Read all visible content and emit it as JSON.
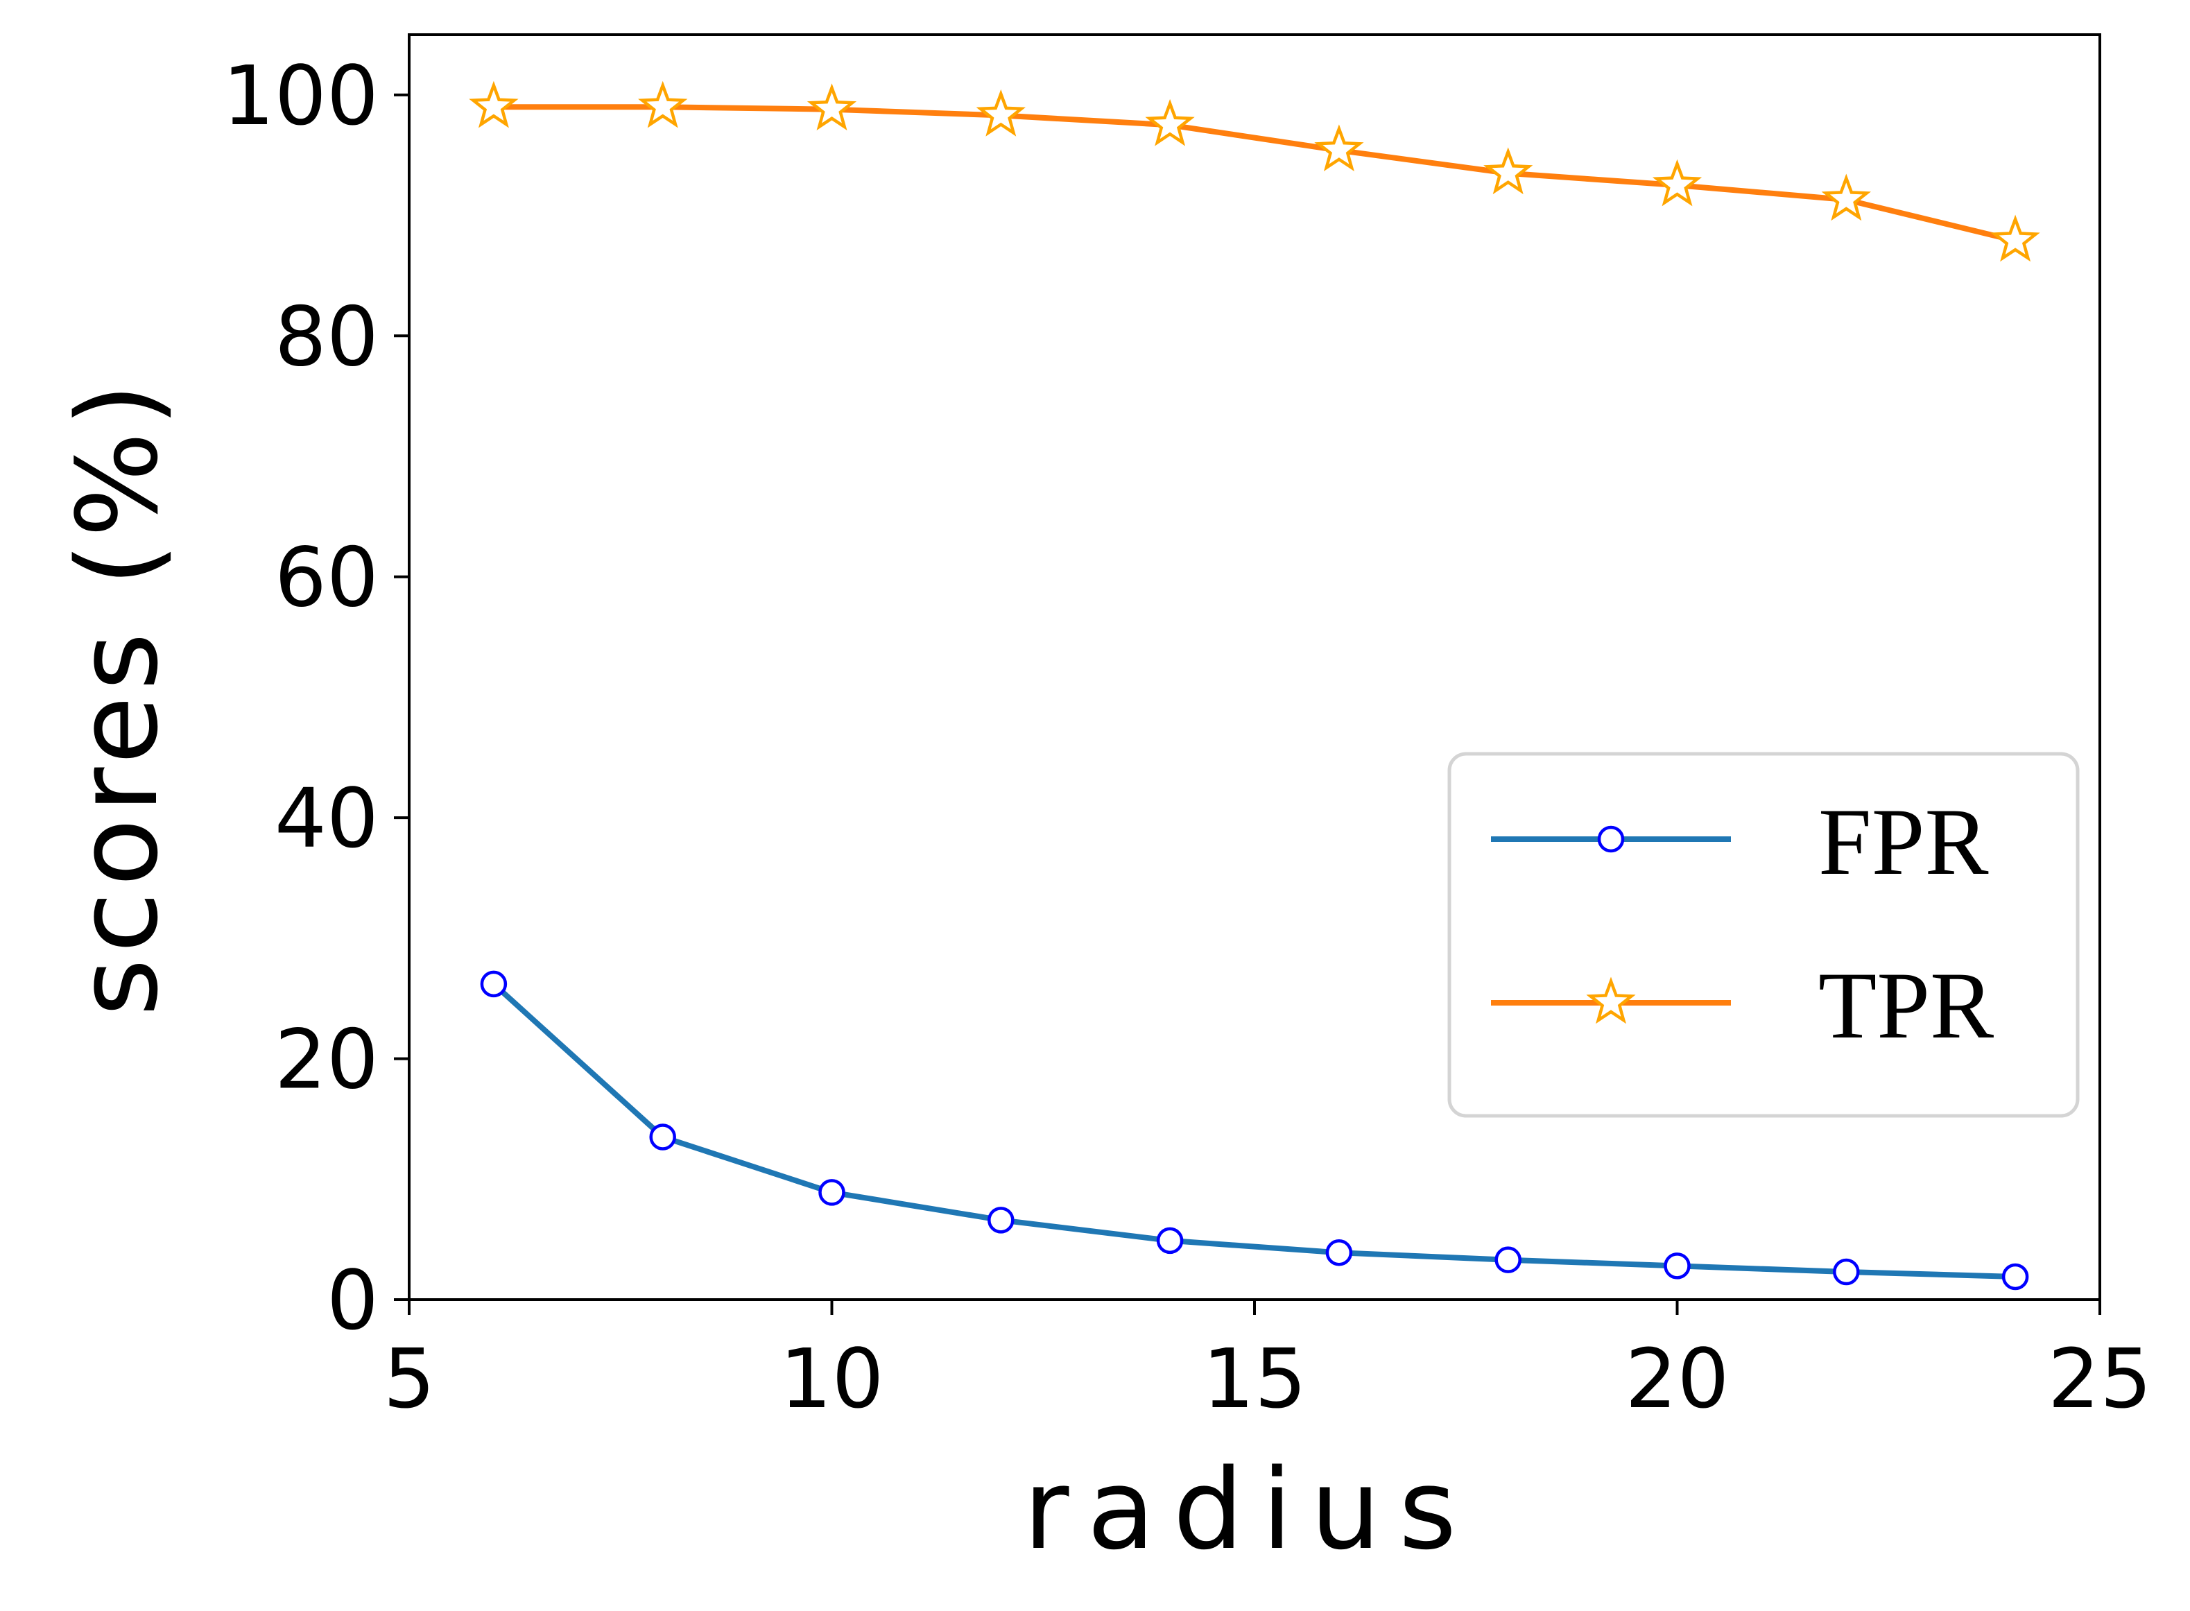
{
  "chart_data": {
    "type": "line",
    "title": "",
    "xlabel": "radius",
    "ylabel": "scores (%)",
    "xlim": [
      5,
      25
    ],
    "ylim": [
      0,
      105
    ],
    "x_ticks": [
      "5",
      "10",
      "15",
      "20",
      "25"
    ],
    "y_ticks": [
      "0",
      "20",
      "40",
      "60",
      "80",
      "100"
    ],
    "grid": false,
    "legend_position": "center-right",
    "x": [
      6,
      8,
      10,
      12,
      14,
      16,
      18,
      20,
      22,
      24
    ],
    "series": [
      {
        "name": "FPR",
        "values": [
          26.2,
          13.5,
          8.9,
          6.6,
          4.9,
          3.9,
          3.3,
          2.8,
          2.3,
          1.9
        ],
        "color": "#1f77b4",
        "marker": "circle",
        "marker_edge_color": "#0000ff"
      },
      {
        "name": "TPR",
        "values": [
          99.0,
          99.0,
          98.8,
          98.3,
          97.5,
          95.4,
          93.5,
          92.5,
          91.3,
          87.9
        ],
        "color": "#ff7f0e",
        "marker": "star",
        "marker_edge_color": "#ffa500"
      }
    ]
  }
}
